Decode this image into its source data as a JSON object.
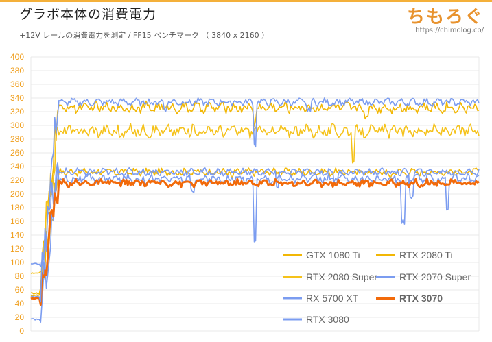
{
  "header": {
    "title": "グラボ本体の消費電力",
    "subtitle": "+12V レールの消費電力を測定  / FF15 ベンチマーク （ 3840 x 2160 ）",
    "logo_text": "ちもろぐ",
    "logo_url": "https://chimolog.co/"
  },
  "chart_data": {
    "type": "line",
    "title": "グラボ本体の消費電力",
    "subtitle": "+12V レールの消費電力を測定  / FF15 ベンチマーク （ 3840 x 2160 ）",
    "xlabel": "",
    "ylabel": "",
    "ylim": [
      0,
      400
    ],
    "yticks": [
      0,
      20,
      40,
      60,
      80,
      100,
      120,
      140,
      160,
      180,
      200,
      220,
      240,
      260,
      280,
      300,
      320,
      340,
      360,
      380,
      400
    ],
    "grid": true,
    "legend_position": "bottom-right",
    "series": [
      {
        "name": "GTX 1080 Ti",
        "color": "#f2b705",
        "bold": false,
        "start": 55,
        "level": 232,
        "noise": 4,
        "dips": [
          [
            0.45,
            8
          ],
          [
            0.8,
            7
          ]
        ]
      },
      {
        "name": "RTX 2080 Ti",
        "color": "#f2b705",
        "bold": false,
        "start": 52,
        "level": 326,
        "noise": 6,
        "dips": [
          [
            0.5,
            22
          ],
          [
            0.75,
            14
          ]
        ]
      },
      {
        "name": "RTX 2080 Super",
        "color": "#f5c21a",
        "bold": false,
        "start": 84,
        "level": 292,
        "noise": 7,
        "dips": [
          [
            0.72,
            50
          ],
          [
            0.2,
            8
          ]
        ]
      },
      {
        "name": "RTX 2070 Super",
        "color": "#7b9cf0",
        "bold": false,
        "start": 98,
        "level": 232,
        "noise": 4,
        "dips": [
          [
            0.55,
            25
          ],
          [
            0.85,
            35
          ],
          [
            0.68,
            15
          ]
        ]
      },
      {
        "name": "RX 5700 XT",
        "color": "#7b9cf0",
        "bold": false,
        "start": 17,
        "level": 222,
        "noise": 5,
        "dips": [
          [
            0.5,
            90
          ],
          [
            0.83,
            65
          ],
          [
            0.93,
            40
          ],
          [
            0.36,
            20
          ]
        ]
      },
      {
        "name": "RTX 3070",
        "color": "#f26a0a",
        "bold": true,
        "start": 48,
        "level": 216,
        "noise": 4,
        "dips": []
      },
      {
        "name": "RTX 3080",
        "color": "#7b9cf0",
        "bold": false,
        "start": 50,
        "level": 334,
        "noise": 4,
        "dips": [
          [
            0.5,
            60
          ],
          [
            0.3,
            10
          ],
          [
            0.62,
            12
          ]
        ]
      }
    ]
  },
  "colors": {
    "accent": "#f4b03a",
    "grid": "#e8e8e8",
    "tick": "#f0a020"
  }
}
